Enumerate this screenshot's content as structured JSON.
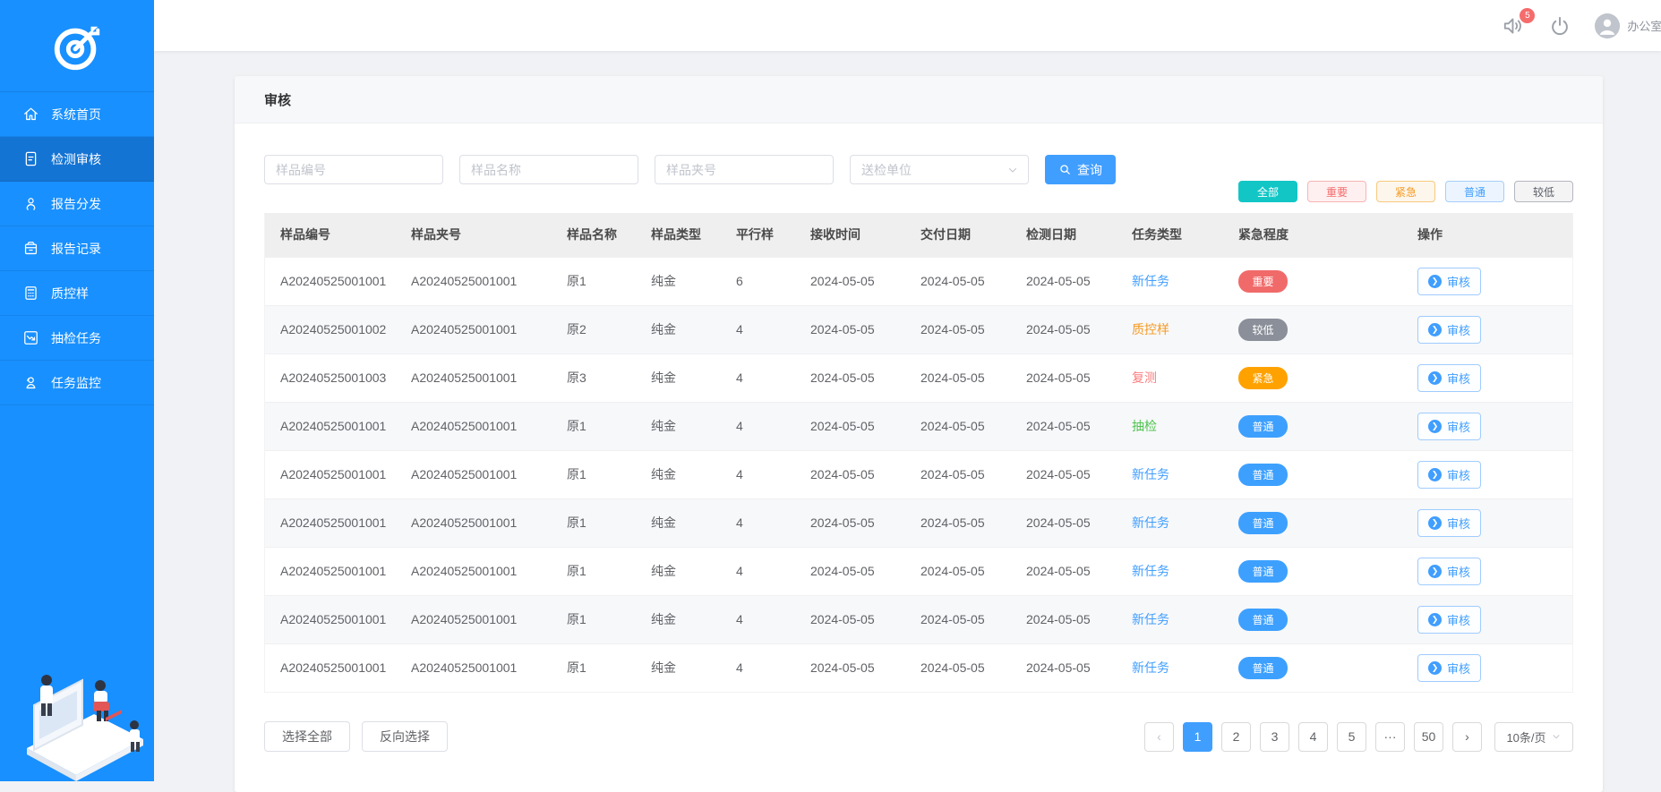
{
  "topbar": {
    "notification_badge": "5",
    "user_label": "办公室:张"
  },
  "sidebar": {
    "items": [
      {
        "label": "系统首页",
        "icon": "i-home",
        "active": false
      },
      {
        "label": "检测审核",
        "icon": "i-doc",
        "active": true
      },
      {
        "label": "报告分发",
        "icon": "i-share",
        "active": false
      },
      {
        "label": "报告记录",
        "icon": "i-box",
        "active": false
      },
      {
        "label": "质控样",
        "icon": "i-calc",
        "active": false
      },
      {
        "label": "抽检任务",
        "icon": "i-chart",
        "active": false
      },
      {
        "label": "任务监控",
        "icon": "i-monitor",
        "active": false
      }
    ]
  },
  "page": {
    "title": "审核"
  },
  "filters": {
    "inputs": [
      {
        "placeholder": "样品编号"
      },
      {
        "placeholder": "样品名称"
      },
      {
        "placeholder": "样品夹号"
      }
    ],
    "select_placeholder": "送检单位",
    "search_label": "查询",
    "tags": [
      {
        "label": "全部",
        "style": "all"
      },
      {
        "label": "重要",
        "style": "important"
      },
      {
        "label": "紧急",
        "style": "urgent"
      },
      {
        "label": "普通",
        "style": "normal"
      },
      {
        "label": "较低",
        "style": "low"
      }
    ]
  },
  "table": {
    "columns": [
      "样品编号",
      "样品夹号",
      "样品名称",
      "样品类型",
      "平行样",
      "接收时间",
      "交付日期",
      "检测日期",
      "任务类型",
      "紧急程度",
      "操作"
    ],
    "action_label": "审核",
    "rows": [
      {
        "sample_no": "A20240525001001",
        "folder_no": "A20240525001001",
        "name": "原1",
        "type": "纯金",
        "parallel": "6",
        "received": "2024-05-05",
        "delivery": "2024-05-05",
        "test_date": "2024-05-05",
        "task_type": "新任务",
        "task_style": "blue",
        "urgency": "重要",
        "urgency_style": "red"
      },
      {
        "sample_no": "A20240525001002",
        "folder_no": "A20240525001001",
        "name": "原2",
        "type": "纯金",
        "parallel": "4",
        "received": "2024-05-05",
        "delivery": "2024-05-05",
        "test_date": "2024-05-05",
        "task_type": "质控样",
        "task_style": "orange",
        "urgency": "较低",
        "urgency_style": "gray"
      },
      {
        "sample_no": "A20240525001003",
        "folder_no": "A20240525001001",
        "name": "原3",
        "type": "纯金",
        "parallel": "4",
        "received": "2024-05-05",
        "delivery": "2024-05-05",
        "test_date": "2024-05-05",
        "task_type": "复测",
        "task_style": "red",
        "urgency": "紧急",
        "urgency_style": "orange"
      },
      {
        "sample_no": "A20240525001001",
        "folder_no": "A20240525001001",
        "name": "原1",
        "type": "纯金",
        "parallel": "4",
        "received": "2024-05-05",
        "delivery": "2024-05-05",
        "test_date": "2024-05-05",
        "task_type": "抽检",
        "task_style": "green",
        "urgency": "普通",
        "urgency_style": "blue"
      },
      {
        "sample_no": "A20240525001001",
        "folder_no": "A20240525001001",
        "name": "原1",
        "type": "纯金",
        "parallel": "4",
        "received": "2024-05-05",
        "delivery": "2024-05-05",
        "test_date": "2024-05-05",
        "task_type": "新任务",
        "task_style": "blue",
        "urgency": "普通",
        "urgency_style": "blue"
      },
      {
        "sample_no": "A20240525001001",
        "folder_no": "A20240525001001",
        "name": "原1",
        "type": "纯金",
        "parallel": "4",
        "received": "2024-05-05",
        "delivery": "2024-05-05",
        "test_date": "2024-05-05",
        "task_type": "新任务",
        "task_style": "blue",
        "urgency": "普通",
        "urgency_style": "blue"
      },
      {
        "sample_no": "A20240525001001",
        "folder_no": "A20240525001001",
        "name": "原1",
        "type": "纯金",
        "parallel": "4",
        "received": "2024-05-05",
        "delivery": "2024-05-05",
        "test_date": "2024-05-05",
        "task_type": "新任务",
        "task_style": "blue",
        "urgency": "普通",
        "urgency_style": "blue"
      },
      {
        "sample_no": "A20240525001001",
        "folder_no": "A20240525001001",
        "name": "原1",
        "type": "纯金",
        "parallel": "4",
        "received": "2024-05-05",
        "delivery": "2024-05-05",
        "test_date": "2024-05-05",
        "task_type": "新任务",
        "task_style": "blue",
        "urgency": "普通",
        "urgency_style": "blue"
      },
      {
        "sample_no": "A20240525001001",
        "folder_no": "A20240525001001",
        "name": "原1",
        "type": "纯金",
        "parallel": "4",
        "received": "2024-05-05",
        "delivery": "2024-05-05",
        "test_date": "2024-05-05",
        "task_type": "新任务",
        "task_style": "blue",
        "urgency": "普通",
        "urgency_style": "blue"
      }
    ]
  },
  "footer": {
    "select_all_label": "选择全部",
    "invert_label": "反向选择",
    "pagination": {
      "prev": "‹",
      "pages": [
        "1",
        "2",
        "3",
        "4",
        "5",
        "···",
        "50"
      ],
      "active_page": "1",
      "next": "›",
      "page_size": "10条/页"
    }
  },
  "colors": {
    "sidebar": "#1890ff",
    "sidebar_active": "#1474d4",
    "primary": "#409eff",
    "tag_all": "#13c6c6",
    "badge_red": "#f16a6a",
    "badge_gray": "#8a8f99",
    "badge_orange": "#ffa200",
    "badge_blue": "#3da0ff",
    "notification": "#f56c6c"
  }
}
